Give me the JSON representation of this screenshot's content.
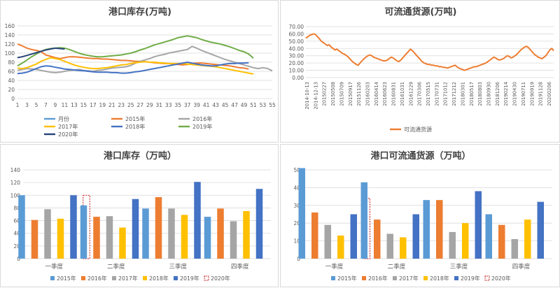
{
  "colors": {
    "s2015": "#ed7d31",
    "s2016": "#a5a5a5",
    "s2017": "#ffc000",
    "s2018": "#4472c4",
    "s2019": "#70ad47",
    "s2020": "#264478",
    "label_blue": "#5b9bd5",
    "dash_red": "#c00000",
    "grid": "#d9d9d9",
    "axis_text": "#595959",
    "title": "#404040"
  },
  "chart_data": [
    {
      "id": "weekly",
      "type": "line",
      "title": "港口库存(万吨)",
      "ylim": [
        0,
        160
      ],
      "yticks": [
        0,
        20,
        40,
        60,
        80,
        100,
        120,
        140,
        160
      ],
      "xticks": [
        1,
        3,
        5,
        7,
        9,
        11,
        13,
        15,
        17,
        19,
        21,
        23,
        25,
        27,
        29,
        31,
        33,
        35,
        37,
        39,
        41,
        43,
        45,
        47,
        49,
        51,
        53,
        55
      ],
      "grid": true,
      "legend": "bottom",
      "legend_items": [
        "月份",
        "2015年",
        "2016年",
        "2017年",
        "2018年",
        "2019年",
        "2020年"
      ],
      "series": [
        {
          "name": "2015年",
          "color_key": "s2015",
          "x_start": 1,
          "values": [
            120,
            116,
            111,
            108,
            106,
            103,
            96,
            93,
            90,
            88,
            90,
            92,
            92,
            91,
            90,
            89,
            88,
            88,
            87,
            87,
            86,
            85,
            84,
            84,
            83,
            82,
            82,
            81,
            80,
            79,
            78,
            77,
            77,
            76,
            75,
            74,
            75,
            77,
            78,
            78,
            77,
            76,
            75,
            74,
            73,
            72,
            70,
            68,
            67,
            65
          ]
        },
        {
          "name": "2016年",
          "color_key": "s2016",
          "x_start": 1,
          "values": [
            62,
            64,
            66,
            65,
            64,
            62,
            60,
            58,
            57,
            58,
            60,
            62,
            63,
            64,
            62,
            61,
            60,
            62,
            63,
            65,
            67,
            68,
            69,
            70,
            73,
            78,
            82,
            85,
            88,
            92,
            95,
            97,
            100,
            102,
            104,
            106,
            108,
            115,
            111,
            106,
            102,
            98,
            94,
            90,
            86,
            83,
            80,
            77,
            74,
            71,
            68,
            66,
            68,
            66,
            61
          ]
        },
        {
          "name": "2017年",
          "color_key": "s2017",
          "x_start": 1,
          "values": [
            67,
            66,
            68,
            72,
            76,
            82,
            86,
            90,
            88,
            86,
            82,
            78,
            74,
            71,
            69,
            67,
            66,
            66,
            67,
            68,
            70,
            72,
            74,
            75,
            77,
            79,
            80,
            81,
            80,
            80,
            79,
            78,
            77,
            77,
            77,
            77,
            76,
            75,
            74,
            73,
            72,
            71,
            70,
            68,
            66,
            64,
            62,
            60,
            58,
            56,
            54
          ]
        },
        {
          "name": "2018年",
          "color_key": "s2018",
          "x_start": 1,
          "values": [
            55,
            56,
            58,
            62,
            66,
            70,
            72,
            71,
            69,
            67,
            65,
            64,
            63,
            62,
            61,
            60,
            59,
            58,
            58,
            58,
            57,
            57,
            56,
            56,
            57,
            59,
            60,
            62,
            64,
            66,
            68,
            70,
            72,
            74,
            76,
            78,
            80,
            78,
            76,
            74,
            73,
            72,
            72,
            74,
            76,
            77,
            77,
            78,
            78,
            79
          ]
        },
        {
          "name": "2019年",
          "color_key": "s2019",
          "x_start": 1,
          "values": [
            72,
            78,
            85,
            92,
            98,
            104,
            108,
            110,
            111,
            112,
            111,
            108,
            104,
            100,
            97,
            95,
            93,
            92,
            92,
            93,
            94,
            95,
            96,
            98,
            100,
            103,
            107,
            110,
            114,
            118,
            121,
            124,
            127,
            130,
            134,
            136,
            138,
            136,
            134,
            130,
            127,
            124,
            122,
            120,
            117,
            114,
            110,
            106,
            103,
            98,
            89
          ]
        },
        {
          "name": "2020年",
          "color_key": "s2020",
          "x_start": 1,
          "values": [
            90,
            92,
            95,
            98,
            101,
            104,
            107,
            109,
            111,
            110,
            109
          ]
        }
      ]
    },
    {
      "id": "flow",
      "type": "line",
      "title": "可流通货源(万吨)",
      "ylim": [
        0,
        70
      ],
      "yticks": [
        "0.00",
        "10.00",
        "20.00",
        "30.00",
        "40.00",
        "50.00",
        "60.00",
        "70.00"
      ],
      "xticks": [
        "2014-10-13",
        "2014-12-13",
        "20150227",
        "20150508",
        "20150709",
        "20150917",
        "20151126",
        "20160203",
        "20160414",
        "20160623",
        "20160831",
        "20161031",
        "20161229",
        "20170306",
        "20170515",
        "20170731",
        "20171012",
        "20171212",
        "20180301",
        "20180517",
        "20180803",
        "20180930",
        "20181206",
        "20190214",
        "20190430",
        "20190711",
        "20190919",
        "20191128",
        "20200206"
      ],
      "grid": true,
      "legend": "bottom",
      "legend_items": [
        "可流通货源"
      ],
      "series": [
        {
          "name": "可流通货源",
          "color_key": "s2015",
          "values": [
            54,
            56,
            58,
            59,
            60,
            59,
            56,
            53,
            50,
            48,
            46,
            44,
            45,
            42,
            40,
            38,
            39,
            37,
            35,
            33,
            32,
            30,
            28,
            25,
            22,
            20,
            18,
            17,
            20,
            23,
            26,
            28,
            30,
            31,
            30,
            28,
            27,
            26,
            25,
            24,
            23,
            23,
            24,
            26,
            28,
            27,
            25,
            23,
            22,
            24,
            27,
            30,
            33,
            36,
            39,
            37,
            34,
            31,
            28,
            25,
            22,
            20,
            19,
            18,
            18,
            17,
            17,
            16,
            16,
            15,
            15,
            14,
            14,
            13,
            14,
            15,
            16,
            17,
            15,
            13,
            12,
            11,
            10,
            11,
            12,
            13,
            14,
            15,
            15,
            16,
            17,
            18,
            19,
            20,
            22,
            24,
            26,
            28,
            27,
            25,
            24,
            25,
            26,
            28,
            30,
            29,
            27,
            28,
            30,
            32,
            35,
            38,
            40,
            42,
            43,
            41,
            38,
            35,
            32,
            30,
            28,
            27,
            26,
            28,
            30,
            34,
            38,
            40,
            37
          ]
        }
      ]
    },
    {
      "id": "quarter_stock",
      "type": "bar",
      "title": "港口库存（万吨）",
      "ylim": [
        0,
        140
      ],
      "yticks": [
        0,
        20,
        40,
        60,
        80,
        100,
        120,
        140
      ],
      "categories": [
        "一季度",
        "二季度",
        "三季度",
        "四季度"
      ],
      "grid": true,
      "legend": "bottom",
      "series": [
        {
          "name": "2015年",
          "color_key": "label_blue",
          "values": [
            100,
            84,
            79,
            66
          ]
        },
        {
          "name": "2016年",
          "color_key": "s2015",
          "values": [
            61,
            66,
            97,
            79
          ]
        },
        {
          "name": "2017年",
          "color_key": "s2016",
          "values": [
            78,
            67,
            79,
            59
          ]
        },
        {
          "name": "2018年",
          "color_key": "s2017",
          "values": [
            63,
            49,
            69,
            75
          ]
        },
        {
          "name": "2019年",
          "color_key": "s2018",
          "values": [
            100,
            94,
            121,
            110
          ]
        },
        {
          "name": "2020年",
          "color_key": "dash_red",
          "dashed": true,
          "values": [
            100,
            null,
            null,
            null
          ]
        }
      ]
    },
    {
      "id": "quarter_flow",
      "type": "bar",
      "title": "港口可流通货源（万吨）",
      "ylim": [
        0,
        50
      ],
      "yticks": [
        0,
        10,
        20,
        30,
        40,
        50
      ],
      "categories": [
        "一季度",
        "二季度",
        "三季度",
        "四季度"
      ],
      "grid": true,
      "legend": "bottom",
      "series": [
        {
          "name": "2015年",
          "color_key": "label_blue",
          "values": [
            51,
            43,
            33,
            25
          ]
        },
        {
          "name": "2016年",
          "color_key": "s2015",
          "values": [
            26,
            22,
            33,
            19
          ]
        },
        {
          "name": "2017年",
          "color_key": "s2016",
          "values": [
            19,
            14,
            15,
            11
          ]
        },
        {
          "name": "2018年",
          "color_key": "s2017",
          "values": [
            13,
            12,
            20,
            22
          ]
        },
        {
          "name": "2019年",
          "color_key": "s2018",
          "values": [
            25,
            25,
            38,
            32
          ]
        },
        {
          "name": "2020年",
          "color_key": "dash_red",
          "dashed": true,
          "values": [
            34,
            null,
            null,
            null
          ]
        }
      ]
    }
  ]
}
